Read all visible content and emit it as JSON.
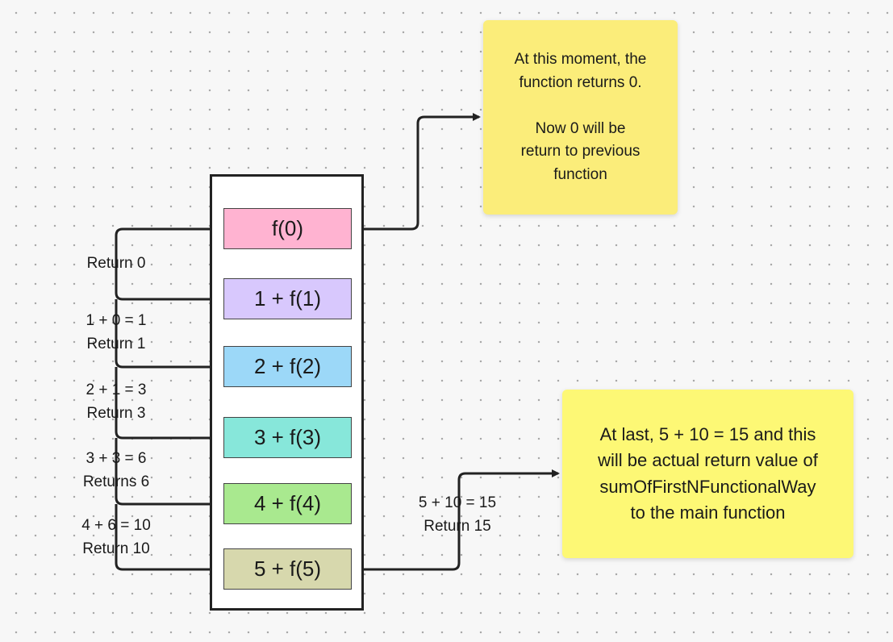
{
  "colors": {
    "f0": "#ffb3d1",
    "f1": "#d8c8fd",
    "f2": "#9cd8f8",
    "f3": "#87e7da",
    "f4": "#a9e98f",
    "f5": "#d7d8ad",
    "note_yellow": "#fbed7a",
    "note_light_yellow": "#fdf875"
  },
  "calls": [
    {
      "label": "f(0)",
      "color": "#ffb3d1"
    },
    {
      "label": "1 + f(1)",
      "color": "#d8c8fd"
    },
    {
      "label": "2 + f(2)",
      "color": "#9cd8f8"
    },
    {
      "label": "3 + f(3)",
      "color": "#87e7da"
    },
    {
      "label": "4 + f(4)",
      "color": "#a9e98f"
    },
    {
      "label": "5 + f(5)",
      "color": "#d7d8ad"
    }
  ],
  "returns": [
    {
      "line1": "Return 0"
    },
    {
      "line1": "1 + 0 = 1",
      "line2": "Return 1"
    },
    {
      "line1": "2 + 1 = 3",
      "line2": "Return 3"
    },
    {
      "line1": "3 + 3 = 6",
      "line2": "Returns 6"
    },
    {
      "line1": "4 + 6 = 10",
      "line2": "Return 10"
    }
  ],
  "final_return": {
    "line1": "5 + 10 = 15",
    "line2": "Return 15"
  },
  "notes": {
    "top": "At this moment, the\nfunction returns 0.\n\nNow 0 will be\nreturn to previous\nfunction",
    "bottom": "At last, 5 + 10 = 15 and this\nwill be actual return value of\nsumOfFirstNFunctionalWay\nto the main function"
  }
}
